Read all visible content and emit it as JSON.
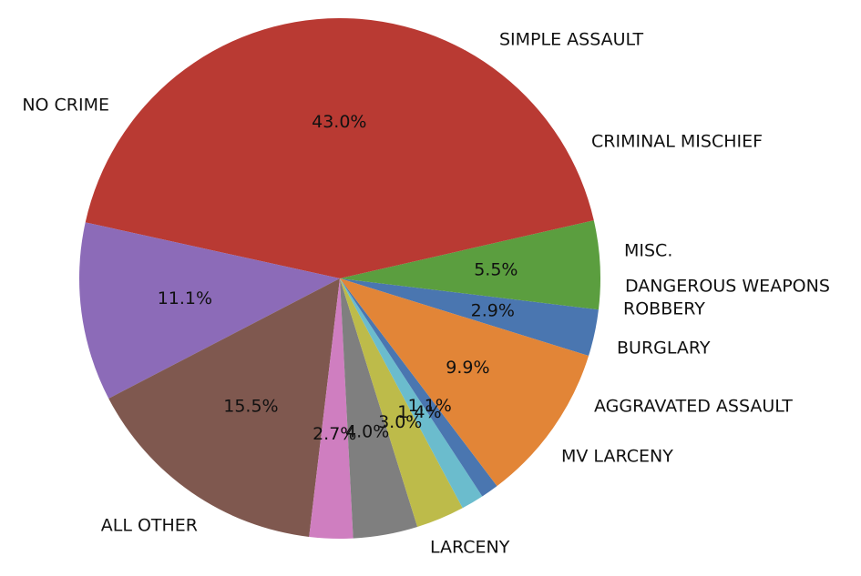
{
  "chart_data": {
    "type": "pie",
    "title": "",
    "series": [
      {
        "label": "MISC.",
        "value": 2.9,
        "pct_label": "2.9%",
        "color": "#4a76b0"
      },
      {
        "label": "SIMPLE ASSAULT",
        "value": 5.5,
        "pct_label": "5.5%",
        "color": "#5b9e3f"
      },
      {
        "label": "NO CRIME",
        "value": 43.0,
        "pct_label": "43.0%",
        "color": "#b93a33"
      },
      {
        "label": "ALL OTHER",
        "value": 11.1,
        "pct_label": "11.1%",
        "color": "#8c6bb8"
      },
      {
        "label": "LARCENY",
        "value": 15.5,
        "pct_label": "15.5%",
        "color": "#7f584f"
      },
      {
        "label": "MV LARCENY",
        "value": 2.7,
        "pct_label": "2.7%",
        "color": "#cf7ec0"
      },
      {
        "label": "AGGRAVATED ASSAULT",
        "value": 4.0,
        "pct_label": "4.0%",
        "color": "#7f7f7f"
      },
      {
        "label": "BURGLARY",
        "value": 3.0,
        "pct_label": "3.0%",
        "color": "#bdbb4a"
      },
      {
        "label": "ROBBERY",
        "value": 1.4,
        "pct_label": "1.4%",
        "color": "#6bbccd"
      },
      {
        "label": "DANGEROUS WEAPONS",
        "value": 1.1,
        "pct_label": "1.1%",
        "color": "#4a76b0"
      },
      {
        "label": "CRIMINAL MISCHIEF",
        "value": 9.9,
        "pct_label": "9.9%",
        "color": "#e28537"
      }
    ]
  }
}
